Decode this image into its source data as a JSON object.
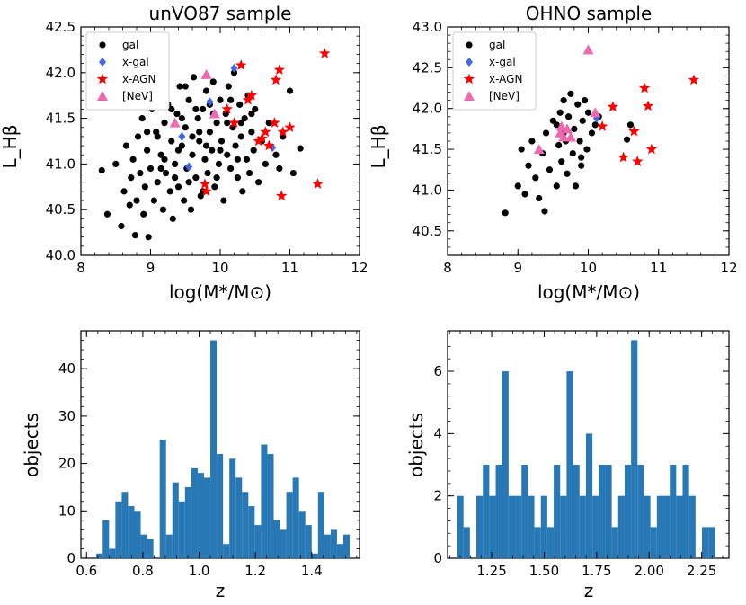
{
  "chart_data": [
    {
      "type": "scatter",
      "title": "unVO87 sample",
      "xlabel": "log(M*/M⊙)",
      "ylabel": "L_Hβ",
      "xlim": [
        8,
        12
      ],
      "ylim": [
        40.0,
        42.5
      ],
      "xticks": [
        "8",
        "9",
        "10",
        "11",
        "12"
      ],
      "yticks": [
        "40.0",
        "40.5",
        "41.0",
        "41.5",
        "42.0",
        "42.5"
      ],
      "legend": "top-left",
      "series": [
        {
          "name": "gal",
          "color": "#000000",
          "marker": "circle",
          "points": [
            [
              8.3,
              40.93
            ],
            [
              8.38,
              40.45
            ],
            [
              8.5,
              41.0
            ],
            [
              8.58,
              40.32
            ],
            [
              8.62,
              40.7
            ],
            [
              8.65,
              41.2
            ],
            [
              8.7,
              40.55
            ],
            [
              8.72,
              40.85
            ],
            [
              8.75,
              41.05
            ],
            [
              8.78,
              40.22
            ],
            [
              8.8,
              40.6
            ],
            [
              8.82,
              41.3
            ],
            [
              8.85,
              40.9
            ],
            [
              8.88,
              41.5
            ],
            [
              8.9,
              40.45
            ],
            [
              8.92,
              40.75
            ],
            [
              8.95,
              41.15
            ],
            [
              8.97,
              40.2
            ],
            [
              9.0,
              40.95
            ],
            [
              9.02,
              41.6
            ],
            [
              9.05,
              40.6
            ],
            [
              9.08,
              41.35
            ],
            [
              9.1,
              40.8
            ],
            [
              9.12,
              41.8
            ],
            [
              9.15,
              41.1
            ],
            [
              9.18,
              40.5
            ],
            [
              9.2,
              41.45
            ],
            [
              9.22,
              40.9
            ],
            [
              9.25,
              41.65
            ],
            [
              9.28,
              40.7
            ],
            [
              9.3,
              41.25
            ],
            [
              9.32,
              40.4
            ],
            [
              9.35,
              41.0
            ],
            [
              9.38,
              41.55
            ],
            [
              9.4,
              40.75
            ],
            [
              9.42,
              41.85
            ],
            [
              9.45,
              41.2
            ],
            [
              9.48,
              40.6
            ],
            [
              9.5,
              41.4
            ],
            [
              9.52,
              40.95
            ],
            [
              9.55,
              41.7
            ],
            [
              9.58,
              40.5
            ],
            [
              9.6,
              41.1
            ],
            [
              9.62,
              41.95
            ],
            [
              9.65,
              40.85
            ],
            [
              9.68,
              41.5
            ],
            [
              9.7,
              41.25
            ],
            [
              9.72,
              40.65
            ],
            [
              9.75,
              41.6
            ],
            [
              9.78,
              41.05
            ],
            [
              9.8,
              41.8
            ],
            [
              9.82,
              40.9
            ],
            [
              9.85,
              41.35
            ],
            [
              9.88,
              41.15
            ],
            [
              9.9,
              41.9
            ],
            [
              9.92,
              40.75
            ],
            [
              9.95,
              41.45
            ],
            [
              9.98,
              41.0
            ],
            [
              10.0,
              41.7
            ],
            [
              10.02,
              41.25
            ],
            [
              10.05,
              40.6
            ],
            [
              10.08,
              41.55
            ],
            [
              10.1,
              41.1
            ],
            [
              10.12,
              41.85
            ],
            [
              10.15,
              40.95
            ],
            [
              10.18,
              41.4
            ],
            [
              10.2,
              42.0
            ],
            [
              10.22,
              41.2
            ],
            [
              10.25,
              40.85
            ],
            [
              10.28,
              41.65
            ],
            [
              10.3,
              41.3
            ],
            [
              10.32,
              40.7
            ],
            [
              10.35,
              41.5
            ],
            [
              10.38,
              41.05
            ],
            [
              10.4,
              41.75
            ],
            [
              10.42,
              40.9
            ],
            [
              10.45,
              41.35
            ],
            [
              10.48,
              41.15
            ],
            [
              10.5,
              41.6
            ],
            [
              10.55,
              40.8
            ],
            [
              10.6,
              41.25
            ],
            [
              10.65,
              41.0
            ],
            [
              10.7,
              41.45
            ],
            [
              10.8,
              41.1
            ],
            [
              10.85,
              40.95
            ],
            [
              10.9,
              41.3
            ],
            [
              11.0,
              41.8
            ],
            [
              11.05,
              40.9
            ],
            [
              11.15,
              41.17
            ],
            [
              9.1,
              41.3
            ],
            [
              9.3,
              41.6
            ],
            [
              9.5,
              41.85
            ],
            [
              9.7,
              41.35
            ],
            [
              9.9,
              41.55
            ],
            [
              10.1,
              41.45
            ],
            [
              9.2,
              41.05
            ],
            [
              9.4,
              41.15
            ],
            [
              9.6,
              41.3
            ],
            [
              9.8,
              41.2
            ],
            [
              10.0,
              41.15
            ],
            [
              10.3,
              41.45
            ],
            [
              9.15,
              40.95
            ],
            [
              9.35,
              40.85
            ],
            [
              9.55,
              40.8
            ],
            [
              9.75,
              40.7
            ],
            [
              9.95,
              40.85
            ],
            [
              10.25,
              41.05
            ],
            [
              8.95,
              41.35
            ],
            [
              9.45,
              41.5
            ],
            [
              9.65,
              41.6
            ],
            [
              9.85,
              41.65
            ],
            [
              10.15,
              41.7
            ],
            [
              10.45,
              41.55
            ]
          ]
        },
        {
          "name": "x-gal",
          "color": "#4169e1",
          "marker": "diamond",
          "points": [
            [
              9.45,
              41.3
            ],
            [
              9.55,
              40.97
            ],
            [
              9.85,
              41.68
            ],
            [
              10.2,
              42.05
            ],
            [
              10.75,
              41.18
            ]
          ]
        },
        {
          "name": "x-AGN",
          "color": "#ff0000",
          "marker": "star",
          "points": [
            [
              9.78,
              40.78
            ],
            [
              9.8,
              40.7
            ],
            [
              10.1,
              41.6
            ],
            [
              10.2,
              41.45
            ],
            [
              10.3,
              42.08
            ],
            [
              10.4,
              41.7
            ],
            [
              10.45,
              41.75
            ],
            [
              10.55,
              41.25
            ],
            [
              10.6,
              41.28
            ],
            [
              10.65,
              41.35
            ],
            [
              10.7,
              41.2
            ],
            [
              10.78,
              41.45
            ],
            [
              10.8,
              41.92
            ],
            [
              10.85,
              42.03
            ],
            [
              10.88,
              40.65
            ],
            [
              10.9,
              41.35
            ],
            [
              11.0,
              41.4
            ],
            [
              11.4,
              40.78
            ],
            [
              11.5,
              42.21
            ]
          ]
        },
        {
          "name": "[NeV]",
          "color": "#ee6ab0",
          "marker": "triangle",
          "points": [
            [
              9.35,
              41.45
            ],
            [
              9.8,
              41.98
            ],
            [
              9.92,
              41.55
            ]
          ]
        }
      ]
    },
    {
      "type": "scatter",
      "title": "OHNO sample",
      "xlabel": "log(M*/M⊙)",
      "ylabel": "L_Hβ",
      "xlim": [
        8,
        12
      ],
      "ylim": [
        40.2,
        43.0
      ],
      "xticks": [
        "8",
        "9",
        "10",
        "11",
        "12"
      ],
      "yticks": [
        "40.5",
        "41.0",
        "41.5",
        "42.0",
        "42.5",
        "43.0"
      ],
      "legend": "top-left",
      "series": [
        {
          "name": "gal",
          "color": "#000000",
          "marker": "circle",
          "points": [
            [
              8.82,
              40.72
            ],
            [
              9.0,
              41.05
            ],
            [
              9.05,
              41.5
            ],
            [
              9.1,
              40.95
            ],
            [
              9.15,
              41.3
            ],
            [
              9.2,
              41.6
            ],
            [
              9.25,
              41.15
            ],
            [
              9.3,
              40.9
            ],
            [
              9.35,
              41.45
            ],
            [
              9.38,
              40.74
            ],
            [
              9.4,
              41.7
            ],
            [
              9.45,
              41.25
            ],
            [
              9.5,
              41.85
            ],
            [
              9.55,
              41.05
            ],
            [
              9.58,
              41.55
            ],
            [
              9.6,
              41.95
            ],
            [
              9.62,
              41.35
            ],
            [
              9.65,
              42.1
            ],
            [
              9.68,
              41.6
            ],
            [
              9.7,
              41.2
            ],
            [
              9.72,
              41.9
            ],
            [
              9.75,
              42.18
            ],
            [
              9.78,
              41.45
            ],
            [
              9.8,
              41.75
            ],
            [
              9.82,
              41.05
            ],
            [
              9.85,
              42.05
            ],
            [
              9.88,
              41.6
            ],
            [
              9.9,
              41.3
            ],
            [
              9.92,
              41.85
            ],
            [
              9.95,
              42.1
            ],
            [
              9.98,
              41.5
            ],
            [
              10.0,
              41.95
            ],
            [
              10.05,
              41.7
            ],
            [
              10.1,
              41.8
            ],
            [
              10.15,
              41.9
            ],
            [
              10.6,
              41.8
            ],
            [
              10.55,
              41.62
            ],
            [
              9.55,
              41.8
            ],
            [
              9.65,
              41.7
            ],
            [
              9.9,
              41.4
            ]
          ]
        },
        {
          "name": "x-gal",
          "color": "#4169e1",
          "marker": "diamond",
          "points": [
            [
              10.12,
              41.88
            ]
          ]
        },
        {
          "name": "x-AGN",
          "color": "#ff0000",
          "marker": "star",
          "points": [
            [
              10.2,
              41.78
            ],
            [
              10.35,
              42.02
            ],
            [
              10.5,
              41.4
            ],
            [
              10.65,
              41.72
            ],
            [
              10.7,
              41.35
            ],
            [
              10.8,
              42.25
            ],
            [
              10.85,
              42.03
            ],
            [
              10.9,
              41.5
            ],
            [
              11.5,
              42.35
            ]
          ]
        },
        {
          "name": "[NeV]",
          "color": "#ee6ab0",
          "marker": "triangle",
          "points": [
            [
              9.3,
              41.5
            ],
            [
              9.6,
              41.7
            ],
            [
              9.65,
              41.65
            ],
            [
              9.7,
              41.75
            ],
            [
              9.75,
              41.65
            ],
            [
              10.0,
              42.72
            ],
            [
              10.1,
              41.95
            ],
            [
              9.62,
              41.78
            ]
          ]
        }
      ]
    },
    {
      "type": "bar",
      "title": "",
      "xlabel": "z",
      "ylabel": "objects",
      "xlim": [
        0.58,
        1.57
      ],
      "ylim": [
        0,
        48
      ],
      "xticks": [
        "0.6",
        "0.8",
        "1.0",
        "1.2",
        "1.4"
      ],
      "yticks": [
        "0",
        "10",
        "20",
        "30",
        "40"
      ],
      "color": "#2878b5",
      "bin_start": 0.635,
      "bin_width": 0.0225,
      "values": [
        1,
        8,
        2,
        12,
        14,
        11,
        10,
        5,
        4,
        0,
        25,
        5,
        16,
        12,
        15,
        19,
        18,
        17,
        46,
        22,
        3,
        21,
        17,
        14,
        11,
        7,
        24,
        22,
        8,
        6,
        14,
        17,
        10,
        7,
        1,
        14,
        5,
        6,
        3,
        5
      ]
    },
    {
      "type": "bar",
      "title": "",
      "xlabel": "z",
      "ylabel": "objects",
      "xlim": [
        1.04,
        2.38
      ],
      "ylim": [
        0,
        7.3
      ],
      "xticks": [
        "1.25",
        "1.50",
        "1.75",
        "2.00",
        "2.25"
      ],
      "yticks": [
        "0",
        "2",
        "4",
        "6"
      ],
      "color": "#2878b5",
      "bin_start": 1.085,
      "bin_width": 0.0307,
      "values": [
        2,
        1,
        0,
        2,
        3,
        2,
        3,
        6,
        2,
        2,
        3,
        2,
        1,
        2,
        1,
        3,
        2,
        6,
        3,
        2,
        4,
        2,
        3,
        3,
        1,
        2,
        3,
        7,
        3,
        2,
        1,
        2,
        2,
        3,
        2,
        3,
        2,
        0,
        1,
        1
      ]
    }
  ]
}
